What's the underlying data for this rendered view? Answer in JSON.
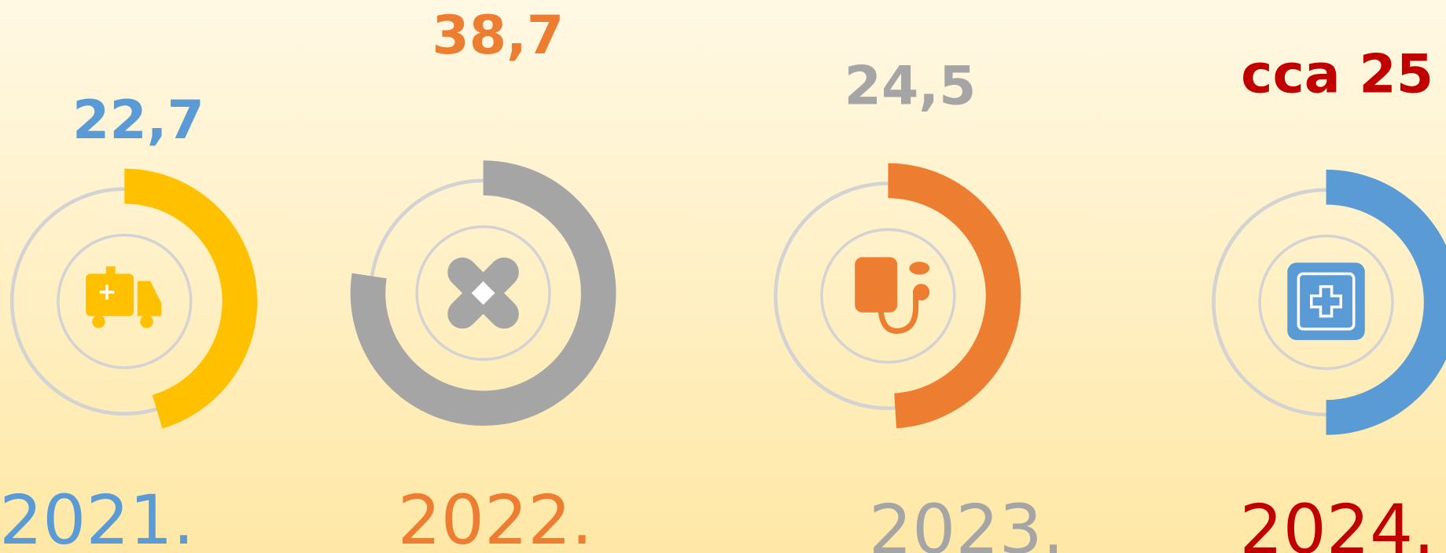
{
  "chart_data": {
    "type": "donut-gauge",
    "categories": [
      "2021.",
      "2022.",
      "2023.",
      "2024."
    ],
    "values": [
      22.7,
      38.7,
      24.5,
      25
    ],
    "value_labels": [
      "22,7",
      "38,7",
      "24,5",
      "cca 25"
    ],
    "colors": [
      "#FFC000",
      "#A5A5A5",
      "#ED7D31",
      "#5B9BD5"
    ],
    "label_colors": [
      "#5B9BD5",
      "#ED7D31",
      "#A5A5A5",
      "#C00000"
    ],
    "ylim": [
      0,
      50
    ]
  }
}
